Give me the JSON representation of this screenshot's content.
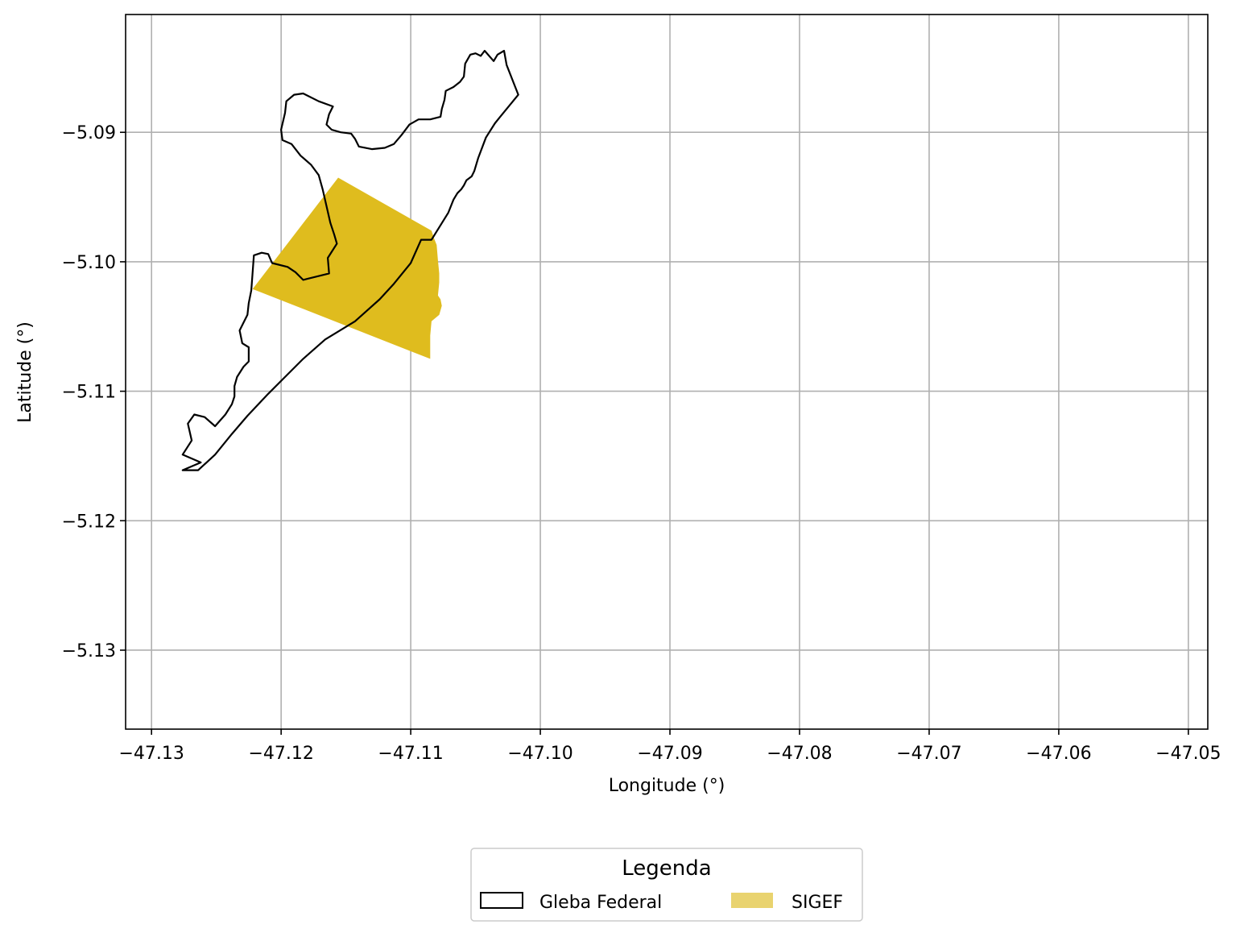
{
  "chart_data": {
    "type": "map",
    "xlabel": "Longitude (°)",
    "ylabel": "Latitude (°)",
    "xlim": [
      -47.132,
      -47.0485
    ],
    "ylim": [
      -5.1361,
      -5.0809
    ],
    "x_ticks": [
      -47.13,
      -47.12,
      -47.11,
      -47.1,
      -47.09,
      -47.08,
      -47.07,
      -47.06,
      -47.05
    ],
    "x_tick_labels": [
      "−47.13",
      "−47.12",
      "−47.11",
      "−47.10",
      "−47.09",
      "−47.08",
      "−47.07",
      "−47.06",
      "−47.05"
    ],
    "y_ticks": [
      -5.09,
      -5.1,
      -5.11,
      -5.12,
      -5.13
    ],
    "y_tick_labels": [
      "−5.09",
      "−5.10",
      "−5.11",
      "−5.12",
      "−5.13"
    ],
    "grid": true,
    "legend": {
      "title": "Legenda",
      "placement": "bottom-center",
      "entries": [
        {
          "label": "Gleba Federal",
          "style": "outline",
          "color": "#000000"
        },
        {
          "label": "SIGEF",
          "style": "fill",
          "color": "#e9d36f"
        }
      ]
    },
    "colors": {
      "outline": "#000000",
      "sigef_fill": "#dfbc1e",
      "grid": "#b0b0b0"
    },
    "layers": [
      {
        "name": "Gleba Federal",
        "type": "polygon-outline",
        "coords": [
          [
            -47.1276,
            -5.1161
          ],
          [
            -47.1262,
            -5.1155
          ],
          [
            -47.1276,
            -5.1149
          ],
          [
            -47.1269,
            -5.1138
          ],
          [
            -47.1272,
            -5.1125
          ],
          [
            -47.1267,
            -5.1118
          ],
          [
            -47.1259,
            -5.112
          ],
          [
            -47.1251,
            -5.1127
          ],
          [
            -47.1243,
            -5.1118
          ],
          [
            -47.1238,
            -5.111
          ],
          [
            -47.1236,
            -5.1104
          ],
          [
            -47.1236,
            -5.1096
          ],
          [
            -47.1234,
            -5.1089
          ],
          [
            -47.1229,
            -5.1081
          ],
          [
            -47.1225,
            -5.1077
          ],
          [
            -47.1225,
            -5.1066
          ],
          [
            -47.123,
            -5.1063
          ],
          [
            -47.1232,
            -5.1053
          ],
          [
            -47.1226,
            -5.1041
          ],
          [
            -47.1225,
            -5.1032
          ],
          [
            -47.1223,
            -5.1022
          ],
          [
            -47.1221,
            -5.0995
          ],
          [
            -47.1215,
            -5.0993
          ],
          [
            -47.121,
            -5.0994
          ],
          [
            -47.1207,
            -5.1001
          ],
          [
            -47.1195,
            -5.1004
          ],
          [
            -47.1189,
            -5.1008
          ],
          [
            -47.1183,
            -5.1014
          ],
          [
            -47.1163,
            -5.1009
          ],
          [
            -47.1164,
            -5.0997
          ],
          [
            -47.1157,
            -5.0986
          ],
          [
            -47.1159,
            -5.0979
          ],
          [
            -47.1162,
            -5.097
          ],
          [
            -47.1168,
            -5.0944
          ],
          [
            -47.1171,
            -5.0933
          ],
          [
            -47.1177,
            -5.0925
          ],
          [
            -47.1185,
            -5.0918
          ],
          [
            -47.1192,
            -5.0909
          ],
          [
            -47.1199,
            -5.0906
          ],
          [
            -47.12,
            -5.0898
          ],
          [
            -47.1197,
            -5.0885
          ],
          [
            -47.1196,
            -5.0876
          ],
          [
            -47.119,
            -5.0871
          ],
          [
            -47.1183,
            -5.087
          ],
          [
            -47.1171,
            -5.0876
          ],
          [
            -47.116,
            -5.088
          ],
          [
            -47.1163,
            -5.0886
          ],
          [
            -47.1165,
            -5.0894
          ],
          [
            -47.1161,
            -5.0898
          ],
          [
            -47.1154,
            -5.09
          ],
          [
            -47.1146,
            -5.0901
          ],
          [
            -47.1143,
            -5.0905
          ],
          [
            -47.114,
            -5.0911
          ],
          [
            -47.113,
            -5.0913
          ],
          [
            -47.112,
            -5.0912
          ],
          [
            -47.1113,
            -5.0909
          ],
          [
            -47.1107,
            -5.0902
          ],
          [
            -47.1101,
            -5.0894
          ],
          [
            -47.1094,
            -5.089
          ],
          [
            -47.1085,
            -5.089
          ],
          [
            -47.1077,
            -5.0888
          ],
          [
            -47.1076,
            -5.0882
          ],
          [
            -47.1074,
            -5.0875
          ],
          [
            -47.1073,
            -5.0868
          ],
          [
            -47.1067,
            -5.0865
          ],
          [
            -47.1062,
            -5.0861
          ],
          [
            -47.1059,
            -5.0857
          ],
          [
            -47.1058,
            -5.0847
          ],
          [
            -47.1054,
            -5.084
          ],
          [
            -47.105,
            -5.0839
          ],
          [
            -47.1046,
            -5.0841
          ],
          [
            -47.1043,
            -5.0837
          ],
          [
            -47.1036,
            -5.0845
          ],
          [
            -47.1033,
            -5.084
          ],
          [
            -47.1028,
            -5.0837
          ],
          [
            -47.1026,
            -5.0848
          ],
          [
            -47.1017,
            -5.0871
          ],
          [
            -47.1031,
            -5.0888
          ],
          [
            -47.1035,
            -5.0893
          ],
          [
            -47.1042,
            -5.0904
          ],
          [
            -47.1048,
            -5.092
          ],
          [
            -47.1051,
            -5.093
          ],
          [
            -47.1053,
            -5.0934
          ],
          [
            -47.1057,
            -5.0937
          ],
          [
            -47.1059,
            -5.0941
          ],
          [
            -47.1061,
            -5.0944
          ],
          [
            -47.1064,
            -5.0947
          ],
          [
            -47.1067,
            -5.0952
          ],
          [
            -47.1071,
            -5.0962
          ],
          [
            -47.1084,
            -5.0983
          ],
          [
            -47.1092,
            -5.0983
          ],
          [
            -47.11,
            -5.1001
          ],
          [
            -47.1113,
            -5.1017
          ],
          [
            -47.1124,
            -5.1029
          ],
          [
            -47.1143,
            -5.1046
          ],
          [
            -47.1166,
            -5.106
          ],
          [
            -47.1183,
            -5.1075
          ],
          [
            -47.1197,
            -5.1089
          ],
          [
            -47.121,
            -5.1102
          ],
          [
            -47.1226,
            -5.1119
          ],
          [
            -47.1238,
            -5.1133
          ],
          [
            -47.1251,
            -5.1149
          ],
          [
            -47.1264,
            -5.1161
          ],
          [
            -47.1276,
            -5.1161
          ]
        ]
      },
      {
        "name": "SIGEF",
        "type": "polygon-fill",
        "coords": [
          [
            -47.1156,
            -5.0935
          ],
          [
            -47.1084,
            -5.0976
          ],
          [
            -47.1082,
            -5.0982
          ],
          [
            -47.108,
            -5.0987
          ],
          [
            -47.1079,
            -5.0999
          ],
          [
            -47.1078,
            -5.1009
          ],
          [
            -47.1078,
            -5.1016
          ],
          [
            -47.1079,
            -5.1026
          ],
          [
            -47.1077,
            -5.1029
          ],
          [
            -47.1076,
            -5.1034
          ],
          [
            -47.1078,
            -5.1041
          ],
          [
            -47.1084,
            -5.1046
          ],
          [
            -47.1085,
            -5.1057
          ],
          [
            -47.1085,
            -5.1075
          ],
          [
            -47.1222,
            -5.1021
          ],
          [
            -47.1156,
            -5.0935
          ]
        ]
      }
    ]
  }
}
